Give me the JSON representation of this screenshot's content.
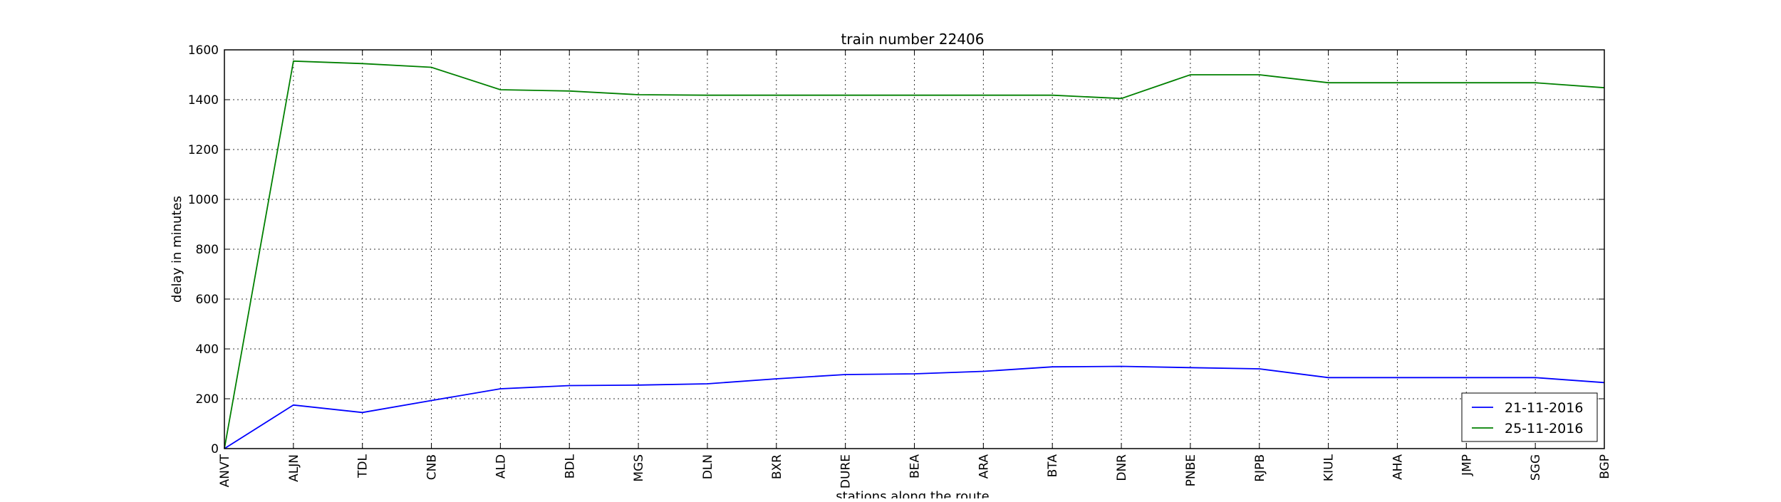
{
  "chart_data": {
    "type": "line",
    "title": "train number 22406",
    "xlabel": "stations along the route",
    "ylabel": "delay in minutes",
    "categories": [
      "ANVT",
      "ALJN",
      "TDL",
      "CNB",
      "ALD",
      "BDL",
      "MGS",
      "DLN",
      "BXR",
      "DURE",
      "BEA",
      "ARA",
      "BTA",
      "DNR",
      "PNBE",
      "RJPB",
      "KIUL",
      "AHA",
      "JMP",
      "SGG",
      "BGP"
    ],
    "ylim": [
      0,
      1600
    ],
    "yticks": [
      0,
      200,
      400,
      600,
      800,
      1000,
      1200,
      1400,
      1600
    ],
    "grid": true,
    "legend_position": "lower-right",
    "series": [
      {
        "name": "21-11-2016",
        "color": "#0000ff",
        "values": [
          0,
          175,
          145,
          193,
          240,
          253,
          255,
          260,
          280,
          297,
          300,
          310,
          328,
          330,
          325,
          320,
          285,
          285,
          285,
          285,
          265
        ]
      },
      {
        "name": "25-11-2016",
        "color": "#008000",
        "values": [
          0,
          1555,
          1545,
          1530,
          1440,
          1435,
          1420,
          1418,
          1418,
          1418,
          1418,
          1418,
          1418,
          1405,
          1500,
          1500,
          1468,
          1468,
          1468,
          1468,
          1448
        ]
      }
    ]
  }
}
